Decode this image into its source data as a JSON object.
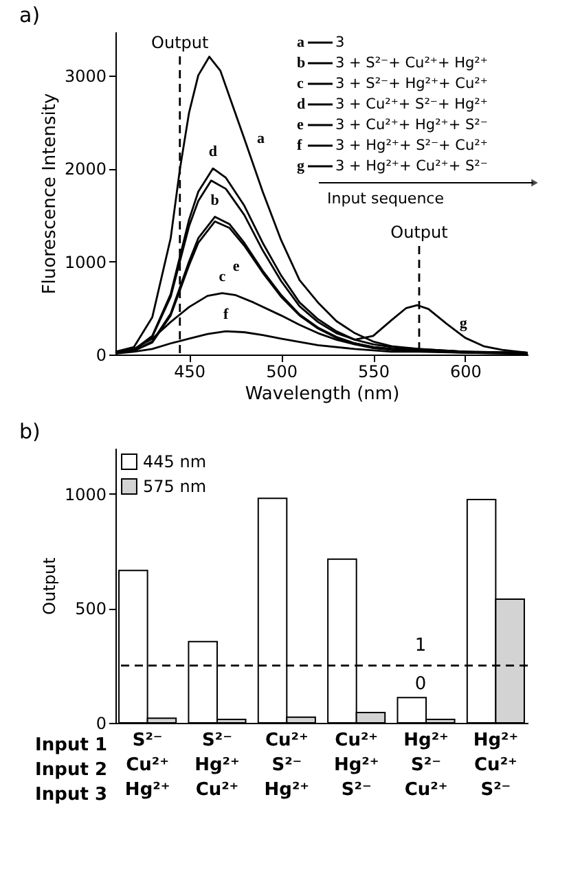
{
  "chart_data": [
    {
      "type": "line",
      "title": "a)",
      "xlabel": "Wavelength (nm)",
      "ylabel": "Fluorescence Intensity",
      "xlim": [
        410,
        634
      ],
      "xticks": [
        450,
        500,
        550,
        600
      ],
      "ylim": [
        0,
        3470
      ],
      "yticks": [
        0,
        1000,
        2000,
        3000
      ],
      "legend": "top right",
      "series": [
        {
          "name": "a",
          "color": "#000000",
          "x": [
            410,
            420,
            430,
            440,
            445,
            450,
            455,
            461,
            467,
            475,
            480,
            490,
            500,
            510,
            520,
            530,
            540,
            550,
            560,
            575,
            600,
            634
          ],
          "values": [
            30,
            80,
            400,
            1250,
            1990,
            2600,
            3000,
            3200,
            3050,
            2600,
            2320,
            1750,
            1230,
            800,
            560,
            360,
            230,
            140,
            90,
            60,
            30,
            20
          ]
        },
        {
          "name": "b",
          "color": "#000000",
          "x": [
            410,
            420,
            430,
            440,
            445,
            450,
            455,
            464,
            472,
            480,
            490,
            500,
            510,
            520,
            530,
            540,
            550,
            560,
            575,
            600,
            634
          ],
          "values": [
            20,
            40,
            140,
            440,
            720,
            1000,
            1250,
            1480,
            1400,
            1200,
            900,
            640,
            430,
            290,
            190,
            120,
            80,
            60,
            50,
            30,
            10
          ]
        },
        {
          "name": "c",
          "color": "#000000",
          "x": [
            410,
            420,
            430,
            440,
            445,
            450,
            460,
            468,
            475,
            485,
            500,
            510,
            520,
            530,
            540,
            550,
            560,
            575,
            600,
            634
          ],
          "values": [
            20,
            60,
            170,
            350,
            430,
            510,
            630,
            660,
            640,
            560,
            420,
            320,
            230,
            160,
            110,
            70,
            50,
            40,
            20,
            10
          ]
        },
        {
          "name": "d",
          "color": "#000000",
          "x": [
            410,
            420,
            430,
            440,
            445,
            450,
            455,
            463,
            470,
            480,
            490,
            500,
            510,
            520,
            530,
            540,
            550,
            560,
            575,
            600,
            634
          ],
          "values": [
            20,
            50,
            200,
            650,
            1050,
            1450,
            1750,
            2000,
            1900,
            1600,
            1200,
            850,
            560,
            380,
            250,
            160,
            110,
            80,
            60,
            30,
            20
          ]
        },
        {
          "name": "e",
          "color": "#000000",
          "x": [
            410,
            420,
            430,
            440,
            445,
            450,
            455,
            464,
            472,
            480,
            490,
            500,
            510,
            520,
            530,
            540,
            550,
            560,
            575,
            600,
            634
          ],
          "values": [
            20,
            40,
            130,
            420,
            690,
            960,
            1200,
            1430,
            1360,
            1170,
            880,
            620,
            420,
            280,
            180,
            120,
            80,
            60,
            50,
            30,
            10
          ]
        },
        {
          "name": "f",
          "color": "#000000",
          "x": [
            410,
            420,
            430,
            440,
            450,
            460,
            470,
            480,
            490,
            500,
            520,
            540,
            560,
            575,
            600,
            630
          ],
          "values": [
            10,
            30,
            60,
            120,
            170,
            220,
            250,
            240,
            210,
            170,
            100,
            60,
            30,
            30,
            20,
            10
          ]
        },
        {
          "name": "g",
          "color": "#000000",
          "x": [
            410,
            420,
            430,
            440,
            445,
            450,
            455,
            462,
            470,
            480,
            490,
            500,
            510,
            520,
            530,
            540,
            550,
            560,
            568,
            574,
            580,
            590,
            600,
            610,
            620,
            634
          ],
          "values": [
            20,
            50,
            190,
            620,
            1000,
            1380,
            1650,
            1870,
            1780,
            1500,
            1120,
            790,
            520,
            350,
            230,
            160,
            200,
            370,
            500,
            530,
            490,
            330,
            180,
            90,
            50,
            20
          ]
        }
      ],
      "ref_lines": [
        {
          "axis": "x",
          "value": 445,
          "label": "Output",
          "line_style": "dashed"
        },
        {
          "axis": "x",
          "value": 575,
          "label": "Output",
          "line_style": "dashed"
        }
      ],
      "annotations": [
        "3",
        "3 + S²⁻+ Cu²⁺+ Hg²⁺",
        "3 + S²⁻+ Hg²⁺+ Cu²⁺",
        "3 + Cu²⁺+ S²⁻+ Hg²⁺",
        "3 + Cu²⁺+ Hg²⁺+ S²⁻",
        "3 + Hg²⁺+ S²⁻+ Cu²⁺",
        "3 + Hg²⁺+ Cu²⁺+ S²⁻",
        "Input sequence"
      ]
    },
    {
      "type": "bar",
      "title": "b)",
      "ylabel": "Output",
      "ylim": [
        0,
        1200
      ],
      "yticks": [
        0,
        500,
        1000
      ],
      "legend": "top left",
      "categories": [
        "S²⁻\nCu²⁺\nHg²⁺",
        "S²⁻\nHg²⁺\nCu²⁺",
        "Cu²⁺\nS²⁻\nHg²⁺",
        "Cu²⁺\nHg²⁺\nS²⁻",
        "Hg²⁺\nS²⁻\nCu²⁺",
        "Hg²⁺\nCu²⁺\nS²⁻"
      ],
      "series": [
        {
          "name": "445 nm",
          "color": "#ffffff",
          "values": [
            665,
            355,
            980,
            715,
            110,
            975
          ]
        },
        {
          "name": "575 nm",
          "color": "#d3d3d3",
          "values": [
            20,
            15,
            25,
            45,
            15,
            540
          ]
        }
      ],
      "ref_lines": [
        {
          "axis": "y",
          "value": 250,
          "line_style": "dashed"
        }
      ],
      "annotations": [
        "Input 1",
        "Input 2",
        "Input 3",
        "1",
        "0"
      ]
    }
  ]
}
